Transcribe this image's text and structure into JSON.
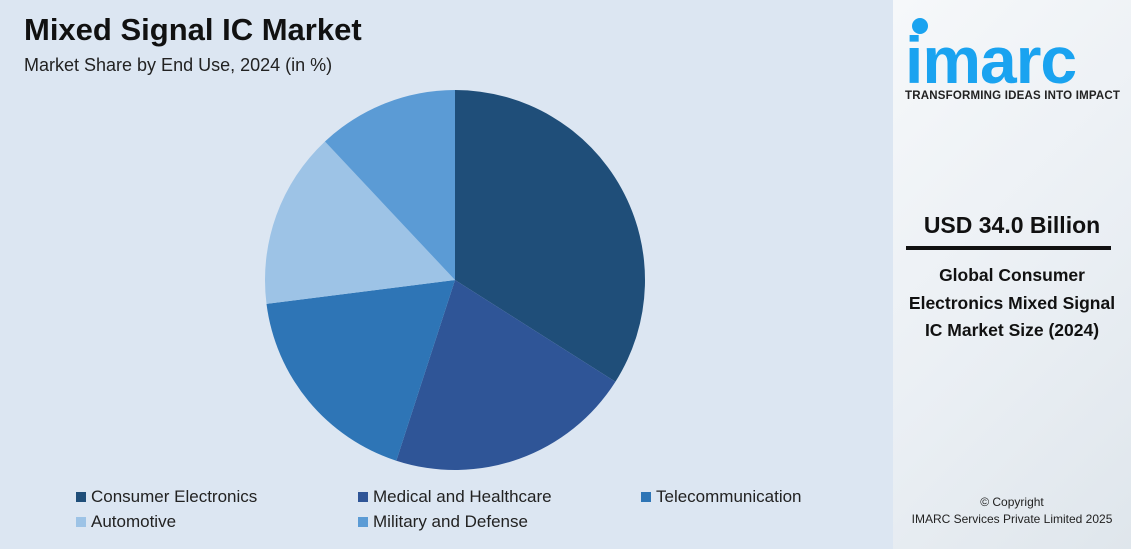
{
  "chart_data": {
    "type": "pie",
    "title": "Mixed Signal IC Market",
    "subtitle": "Market Share by End Use, 2024 (in %)",
    "categories": [
      "Consumer Electronics",
      "Medical and Healthcare",
      "Telecommunication",
      "Automotive",
      "Military and Defense"
    ],
    "values": [
      34,
      21,
      18,
      15,
      12
    ],
    "colors": [
      "#1f4e79",
      "#2f5597",
      "#2e75b6",
      "#9dc3e6",
      "#5b9bd5"
    ],
    "legend_placement": "bottom"
  },
  "sidebar": {
    "logo_text": "imarc",
    "tagline": "TRANSFORMING IDEAS INTO IMPACT",
    "value": "USD 34.0 Billion",
    "description": "Global Consumer Electronics Mixed Signal IC Market Size (2024)",
    "copyright_line1": "© Copyright",
    "copyright_line2": "IMARC Services Private Limited 2025",
    "brand_color": "#1aa3f0"
  }
}
